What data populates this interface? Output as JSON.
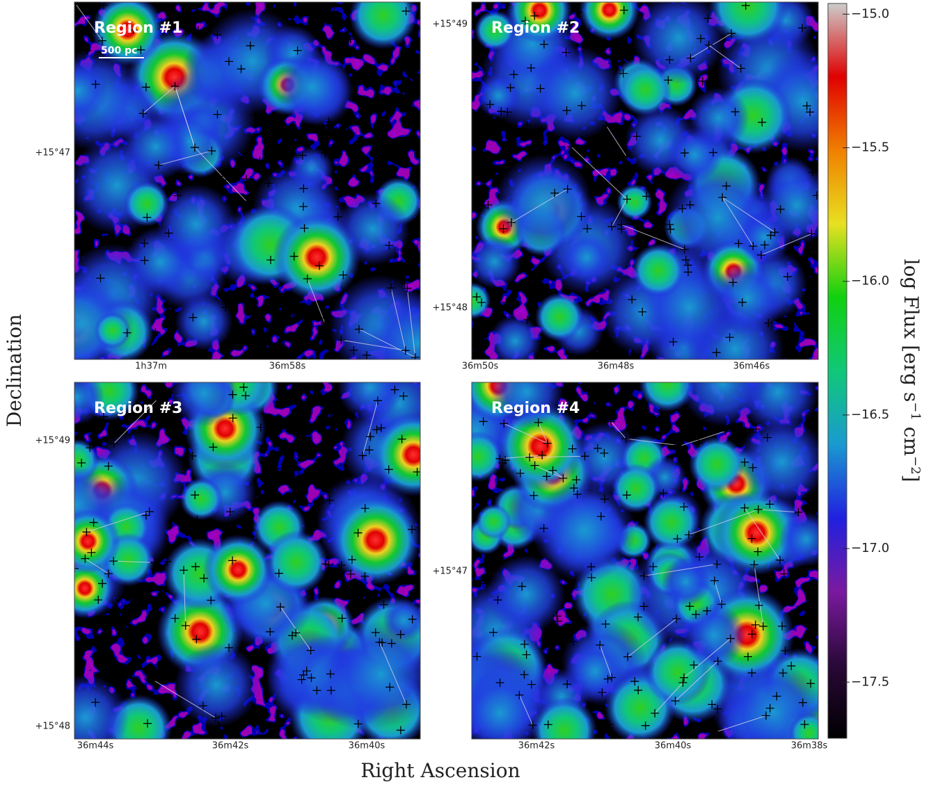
{
  "chart_data": {
    "type": "image-panels",
    "x_label": "Right Ascension",
    "y_label": "Declination",
    "panels": [
      {
        "title": "Region #1",
        "scale_label": "500 pc",
        "dec_ticks": [
          "+15°47"
        ],
        "ra_ticks": [
          "1h37m",
          "36m58s"
        ]
      },
      {
        "title": "Region #2",
        "dec_ticks": [
          "+15°49",
          "+15°48"
        ],
        "ra_ticks": [
          "36m50s",
          "36m48s",
          "36m46s"
        ]
      },
      {
        "title": "Region #3",
        "dec_ticks": [
          "+15°49",
          "+15°48"
        ],
        "ra_ticks": [
          "36m44s",
          "36m42s",
          "36m40s"
        ]
      },
      {
        "title": "Region #4",
        "dec_ticks": [
          "+15°47"
        ],
        "ra_ticks": [
          "36m42s",
          "36m40s",
          "36m38s"
        ]
      }
    ],
    "colorbar": {
      "label_parts": [
        "log Flux [erg s",
        "−1",
        " cm",
        "−2",
        "]"
      ],
      "lim": [
        -17.71,
        -14.96
      ],
      "ticks": [
        {
          "value": -15.0,
          "label": "−15.0"
        },
        {
          "value": -15.5,
          "label": "−15.5"
        },
        {
          "value": -16.0,
          "label": "−16.0"
        },
        {
          "value": -16.5,
          "label": "−16.5"
        },
        {
          "value": -17.0,
          "label": "−17.0"
        },
        {
          "value": -17.5,
          "label": "−17.5"
        }
      ],
      "colormap": [
        "#000000",
        "#2a0838",
        "#7a1aa0",
        "#2020e0",
        "#1a9ad0",
        "#10c878",
        "#10d010",
        "#e8e020",
        "#f08000",
        "#e00000",
        "#cccccc"
      ]
    }
  }
}
